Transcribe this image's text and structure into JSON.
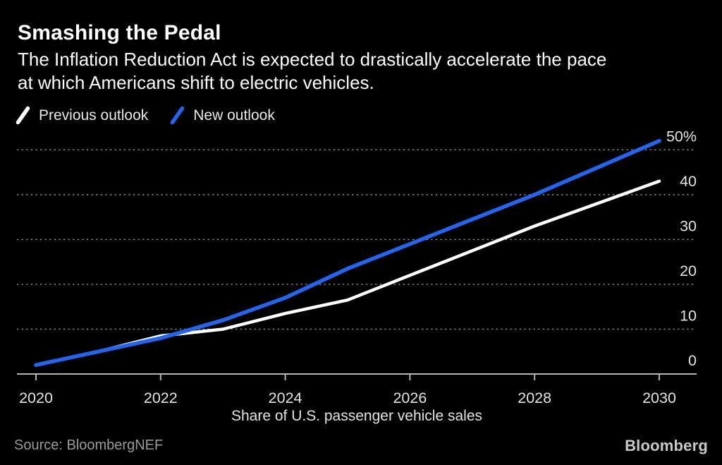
{
  "header": {
    "title": "Smashing the Pedal",
    "subtitle1": "The Inflation Reduction Act is expected to drastically accelerate the pace",
    "subtitle2": "at which Americans shift to electric vehicles."
  },
  "legend": {
    "items": [
      {
        "label": "Previous outlook",
        "color": "#ffffff"
      },
      {
        "label": "New outlook",
        "color": "#2465ef"
      }
    ]
  },
  "chart_data": {
    "type": "line",
    "x": [
      2020,
      2021,
      2022,
      2023,
      2024,
      2025,
      2026,
      2027,
      2028,
      2029,
      2030
    ],
    "series": [
      {
        "name": "Previous outlook",
        "color": "#ffffff",
        "width": 4.5,
        "values": [
          2,
          5,
          8.5,
          10,
          13.5,
          16.5,
          22,
          27.5,
          33,
          38,
          43
        ]
      },
      {
        "name": "New outlook",
        "color": "#2465ef",
        "width": 5.5,
        "values": [
          2,
          5,
          8,
          12,
          17,
          23.5,
          29,
          34.5,
          40,
          46,
          52
        ]
      }
    ],
    "ylim": [
      0,
      50
    ],
    "yticks": [
      0,
      10,
      20,
      30,
      40,
      50
    ],
    "ytick_labels": [
      "0",
      "10",
      "20",
      "30",
      "40",
      "50%"
    ],
    "xticks": [
      2020,
      2022,
      2024,
      2026,
      2028,
      2030
    ],
    "xtick_labels": [
      "2020",
      "2022",
      "2024",
      "2026",
      "2028",
      "2030"
    ],
    "xlabel": "Share of U.S. passenger vehicle sales",
    "grid": "dotted-horizontal",
    "legend_position": "top-left",
    "colors": {
      "background": "#000000",
      "gridline": "#969696",
      "axis": "#b3b3b3",
      "tick_text": "#e3e3e3"
    }
  },
  "footer": {
    "source": "Source: BloombergNEF",
    "logo": "Bloomberg"
  }
}
